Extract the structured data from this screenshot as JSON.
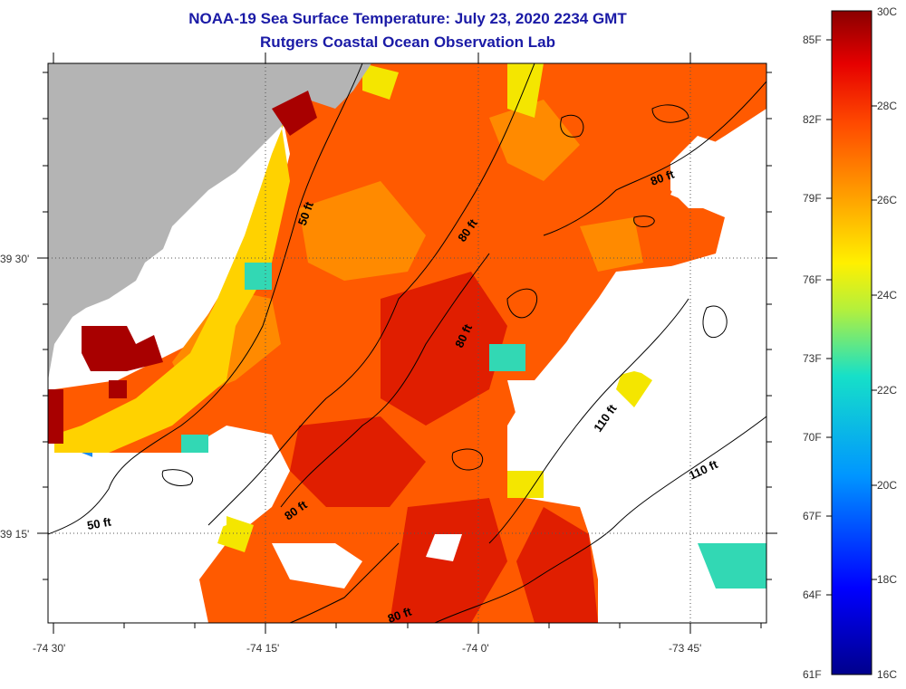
{
  "title": "NOAA-19 Sea Surface Temperature:  July 23, 2020 2234 GMT",
  "subtitle": "Rutgers Coastal Ocean Observation Lab",
  "x_ticks": [
    "-74 30'",
    "-74 15'",
    "-74 0'",
    "-73 45'"
  ],
  "y_ticks": [
    "39 30'",
    "39 15'"
  ],
  "contour_labels": [
    "50 ft",
    "50 ft",
    "80 ft",
    "80 ft",
    "80 ft",
    "80 ft",
    "80 ft",
    "110 ft",
    "110 ft"
  ],
  "colorbar": {
    "celsius": [
      "30C",
      "28C",
      "26C",
      "24C",
      "22C",
      "20C",
      "18C",
      "16C"
    ],
    "fahrenheit": [
      "85F",
      "82F",
      "79F",
      "76F",
      "73F",
      "70F",
      "67F",
      "64F",
      "61F"
    ],
    "range_c": [
      16,
      30
    ]
  },
  "colors": {
    "land": "#b4b4b4",
    "no_data": "#ffffff",
    "title": "#1a1aa6"
  }
}
